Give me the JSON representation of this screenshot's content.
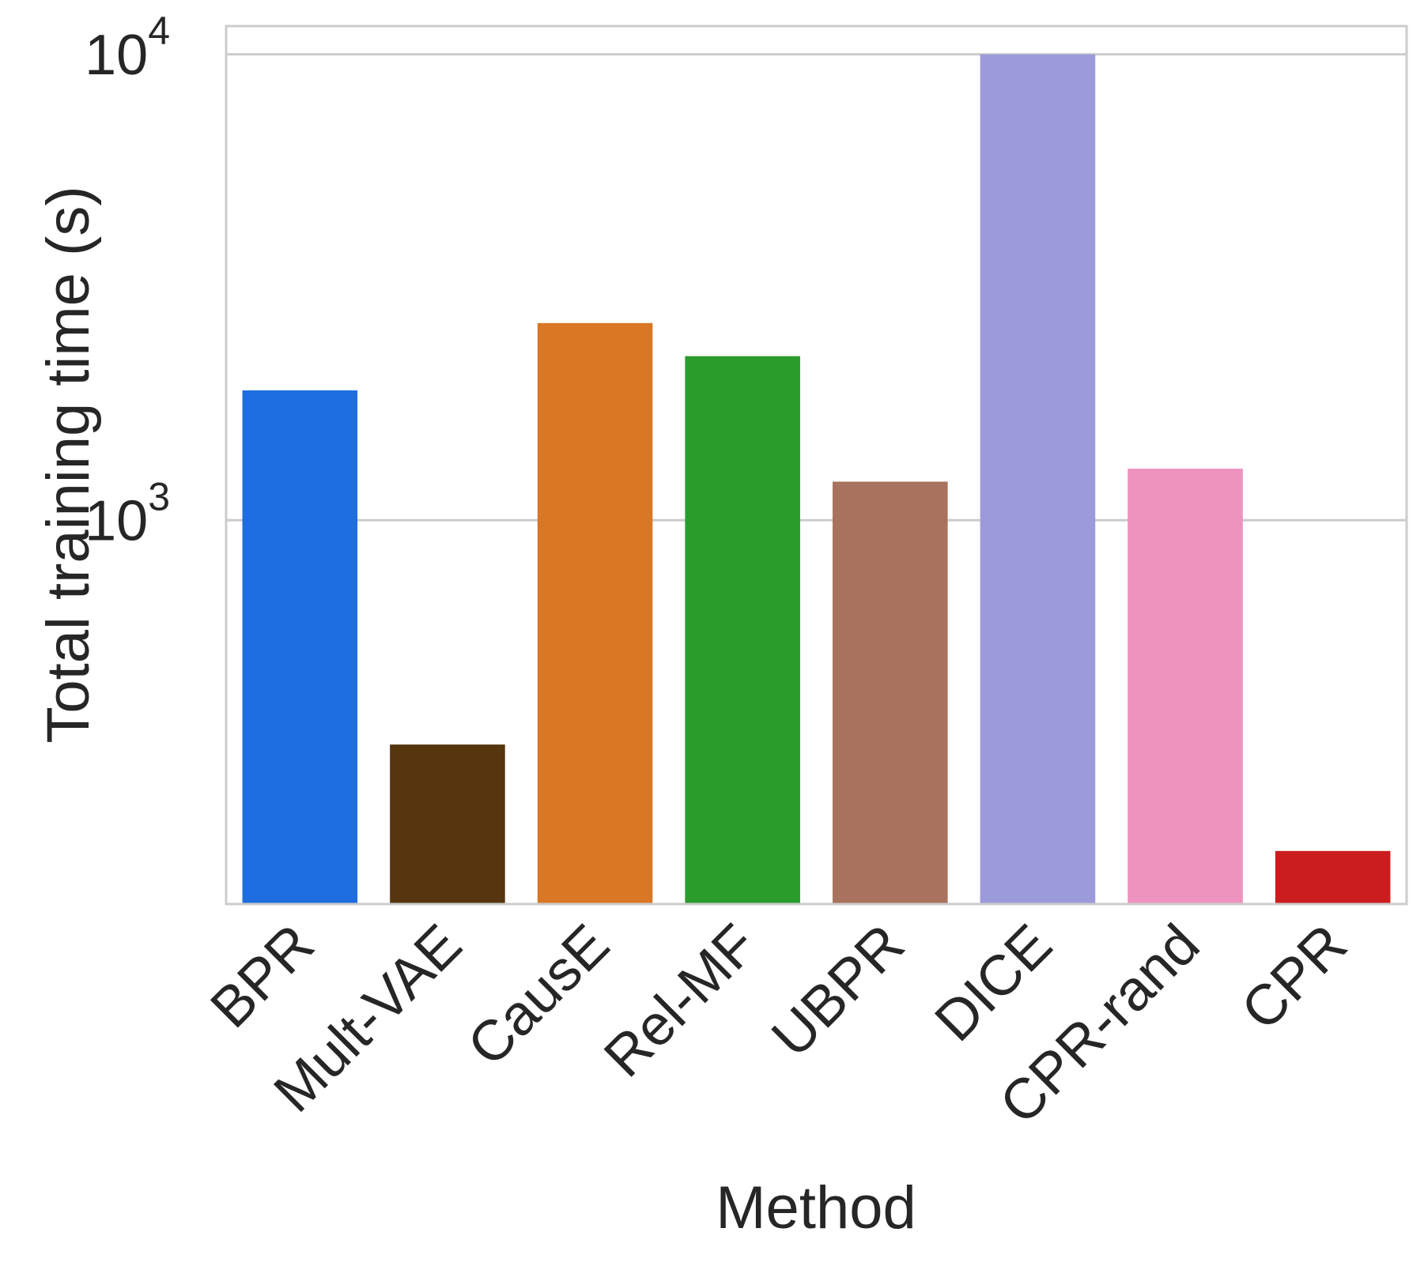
{
  "chart_data": {
    "type": "bar",
    "xlabel": "Method",
    "ylabel": "Total training time (s)",
    "y_scale": "log",
    "ylim": [
      150,
      11500
    ],
    "yticks": [
      {
        "value": 1000,
        "base": "10",
        "exponent": "3"
      },
      {
        "value": 10000,
        "base": "10",
        "exponent": "4"
      }
    ],
    "grid": true,
    "categories": [
      "BPR",
      "Mult-VAE",
      "CausE",
      "Rel-MF",
      "UBPR",
      "DICE",
      "CPR-rand",
      "CPR"
    ],
    "values": [
      1900,
      330,
      2650,
      2250,
      1210,
      10000,
      1290,
      195
    ],
    "colors": [
      "#1f6ee0",
      "#56350f",
      "#da7725",
      "#2a9c2b",
      "#a8725e",
      "#9b9ada",
      "#ee92be",
      "#cb1d1f"
    ]
  }
}
